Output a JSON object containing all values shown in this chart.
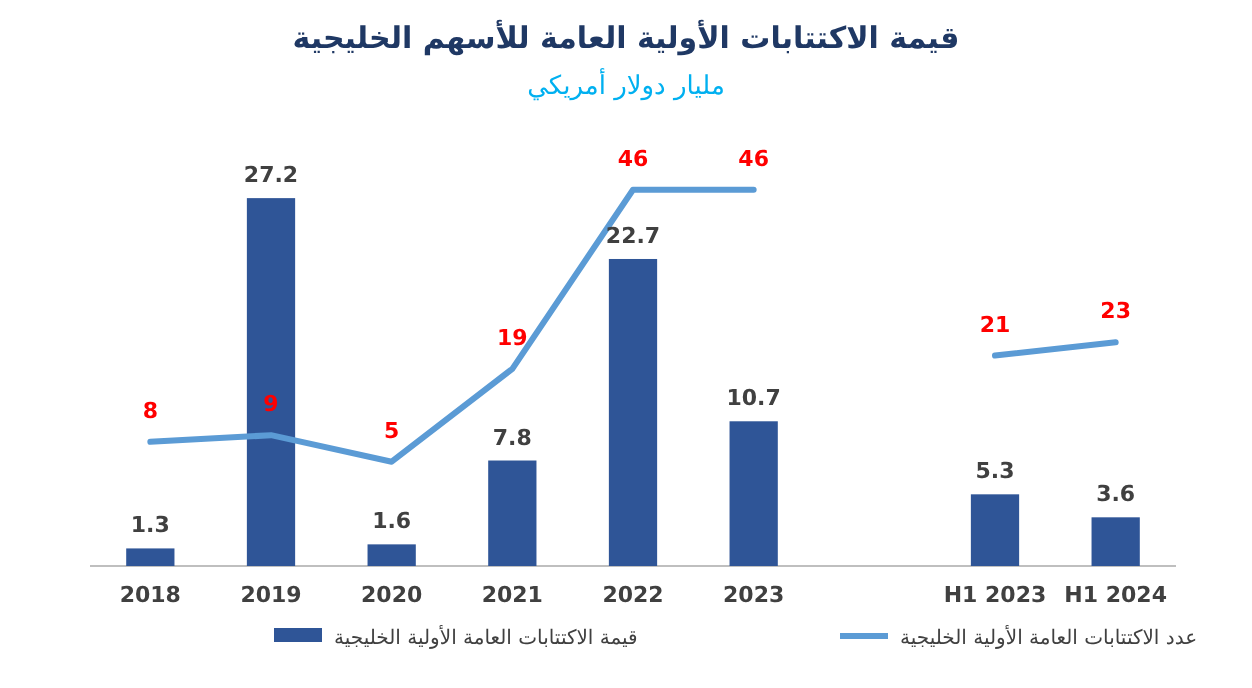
{
  "chart_data": {
    "type": "bar",
    "title": "قيمة الاكتتابات الأولية العامة للأسهم الخليجية",
    "subtitle": "مليار دولار أمريكي",
    "categories": [
      "2018",
      "2019",
      "2020",
      "2021",
      "2022",
      "2023",
      null,
      "H1 2023",
      "H1 2024"
    ],
    "series": [
      {
        "name": "قيمة الاكتتابات العامة الأولية الخليجية",
        "color": "#2f5597",
        "values": [
          1.3,
          27.2,
          1.6,
          7.8,
          22.7,
          10.7,
          null,
          5.3,
          3.6
        ]
      },
      {
        "name": "عدد الاكتتابات العامة الأولية الخليجية",
        "type": "line",
        "axis": "y2",
        "color": "#5b9bd5",
        "values": [
          8,
          9,
          5,
          19,
          46,
          46,
          null,
          21,
          23
        ]
      }
    ],
    "tick_labels": "x",
    "data_labels": true,
    "legend": "bottom",
    "marker": "none"
  }
}
